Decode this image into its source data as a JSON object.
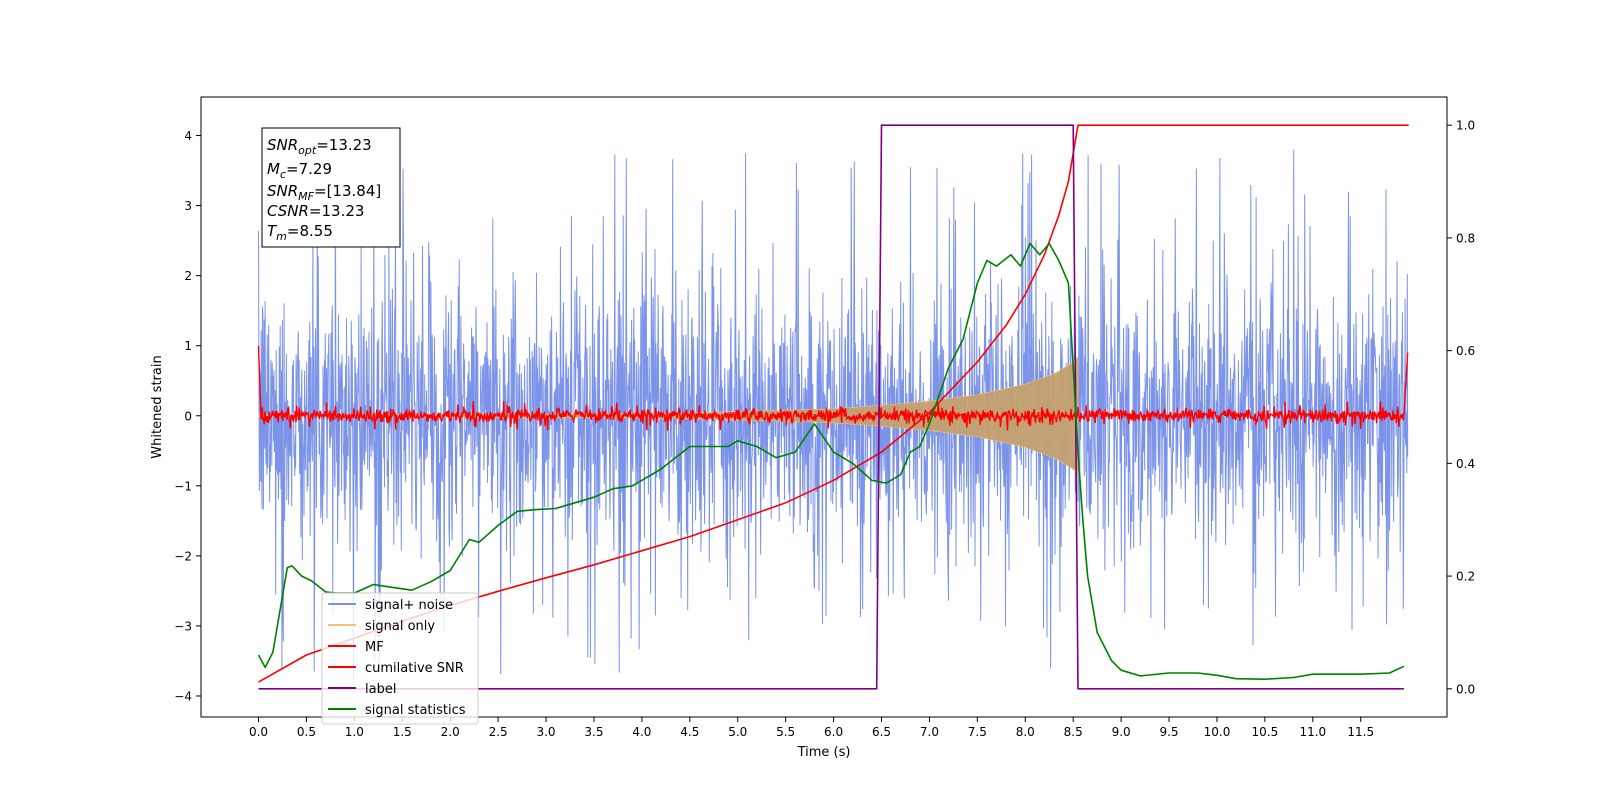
{
  "chart_data": {
    "type": "line",
    "title": "",
    "xlabel": "Time (s)",
    "ylabel": "Whitened strain",
    "xlim": [
      -0.6,
      12.4
    ],
    "ylim": [
      -4.3,
      4.55
    ],
    "y2lim": [
      -0.05,
      1.05
    ],
    "x_ticks": [
      "0.0",
      "0.5",
      "1.0",
      "1.5",
      "2.0",
      "2.5",
      "3.0",
      "3.5",
      "4.0",
      "4.5",
      "5.0",
      "5.5",
      "6.0",
      "6.5",
      "7.0",
      "7.5",
      "8.0",
      "8.5",
      "9.0",
      "9.5",
      "10.0",
      "10.5",
      "11.0",
      "11.5"
    ],
    "x_tick_values": [
      0,
      0.5,
      1,
      1.5,
      2,
      2.5,
      3,
      3.5,
      4,
      4.5,
      5,
      5.5,
      6,
      6.5,
      7,
      7.5,
      8,
      8.5,
      9,
      9.5,
      10,
      10.5,
      11,
      11.5
    ],
    "y_ticks": [
      "4",
      "3",
      "2",
      "1",
      "0",
      "−1",
      "−2",
      "−3",
      "−4"
    ],
    "y_tick_values": [
      4,
      3,
      2,
      1,
      0,
      -1,
      -2,
      -3,
      -4
    ],
    "y2_ticks": [
      "1.0",
      "0.8",
      "0.6",
      "0.4",
      "0.2",
      "0.0"
    ],
    "y2_tick_values": [
      1.0,
      0.8,
      0.6,
      0.4,
      0.2,
      0.0
    ],
    "grid": false,
    "legend_position": "lower-left",
    "annotation": {
      "lines": [
        {
          "main": "SNR",
          "sub": "opt",
          "rest": "=13.23"
        },
        {
          "main": "M",
          "sub": "c",
          "rest": "=7.29"
        },
        {
          "main": "SNR",
          "sub": "MF",
          "rest": "=[13.84]"
        },
        {
          "main": "CSNR",
          "sub": "",
          "rest": "=13.23"
        },
        {
          "main": "T",
          "sub": "m",
          "rest": "=8.55"
        }
      ]
    },
    "series": [
      {
        "name": "signal+ noise",
        "color": "#7b93e8",
        "axis": "left",
        "kind": "noise",
        "typical_abs_max": 2.6,
        "peak_max": 4.2,
        "peak_min": -3.9
      },
      {
        "name": "signal only",
        "color": "#f5c27a",
        "axis": "left",
        "kind": "chirp_envelope",
        "envelope": {
          "t": [
            0,
            4,
            5,
            6,
            6.5,
            7,
            7.5,
            8,
            8.3,
            8.5,
            8.55
          ],
          "amp": [
            0.01,
            0.03,
            0.06,
            0.1,
            0.15,
            0.21,
            0.3,
            0.45,
            0.6,
            0.76,
            0.85
          ]
        }
      },
      {
        "name": "MF",
        "color": "#ff0000",
        "axis": "left",
        "kind": "noise_small",
        "edge_values": [
          1.0,
          0.9
        ],
        "typical_abs_max": 0.2
      },
      {
        "name": "cumilative SNR",
        "color": "#ff0000",
        "axis": "right",
        "x": [
          0.0,
          0.5,
          1.0,
          1.5,
          2.0,
          2.5,
          3.0,
          3.5,
          4.0,
          4.5,
          5.0,
          5.5,
          6.0,
          6.5,
          7.0,
          7.5,
          7.8,
          8.0,
          8.2,
          8.35,
          8.45,
          8.5,
          8.55,
          12.0
        ],
        "y": [
          0.012,
          0.06,
          0.09,
          0.12,
          0.148,
          0.173,
          0.197,
          0.22,
          0.245,
          0.27,
          0.3,
          0.33,
          0.37,
          0.42,
          0.49,
          0.58,
          0.645,
          0.7,
          0.77,
          0.84,
          0.9,
          0.95,
          1.0,
          1.0
        ]
      },
      {
        "name": "label",
        "color": "#800080",
        "axis": "right",
        "x": [
          0.0,
          6.45,
          6.5,
          8.5,
          8.55,
          11.95
        ],
        "y": [
          0.0,
          0.0,
          1.0,
          1.0,
          0.0,
          0.0
        ]
      },
      {
        "name": "signal statistics",
        "color": "#008000",
        "axis": "right",
        "x": [
          0.0,
          0.07,
          0.15,
          0.3,
          0.35,
          0.45,
          0.55,
          0.7,
          0.8,
          1.0,
          1.2,
          1.4,
          1.6,
          1.8,
          2.0,
          2.2,
          2.3,
          2.5,
          2.7,
          2.9,
          3.1,
          3.3,
          3.5,
          3.7,
          3.9,
          4.0,
          4.2,
          4.35,
          4.5,
          4.7,
          4.9,
          5.0,
          5.2,
          5.4,
          5.6,
          5.8,
          6.0,
          6.2,
          6.4,
          6.55,
          6.7,
          6.8,
          6.9,
          7.0,
          7.2,
          7.35,
          7.5,
          7.6,
          7.7,
          7.85,
          7.95,
          8.05,
          8.15,
          8.25,
          8.35,
          8.45,
          8.55,
          8.6,
          8.65,
          8.75,
          8.9,
          9.0,
          9.2,
          9.5,
          9.8,
          10.0,
          10.2,
          10.5,
          10.8,
          11.0,
          11.2,
          11.5,
          11.8,
          11.95
        ],
        "y": [
          0.06,
          0.038,
          0.065,
          0.215,
          0.218,
          0.2,
          0.192,
          0.172,
          0.17,
          0.17,
          0.185,
          0.18,
          0.175,
          0.19,
          0.21,
          0.265,
          0.26,
          0.29,
          0.315,
          0.318,
          0.32,
          0.33,
          0.34,
          0.355,
          0.36,
          0.37,
          0.39,
          0.41,
          0.43,
          0.43,
          0.43,
          0.44,
          0.43,
          0.41,
          0.42,
          0.47,
          0.42,
          0.4,
          0.37,
          0.365,
          0.38,
          0.42,
          0.43,
          0.47,
          0.57,
          0.62,
          0.72,
          0.76,
          0.75,
          0.77,
          0.75,
          0.79,
          0.77,
          0.79,
          0.76,
          0.72,
          0.42,
          0.3,
          0.2,
          0.1,
          0.05,
          0.033,
          0.023,
          0.028,
          0.028,
          0.024,
          0.018,
          0.017,
          0.02,
          0.026,
          0.026,
          0.026,
          0.028,
          0.04
        ]
      }
    ]
  }
}
